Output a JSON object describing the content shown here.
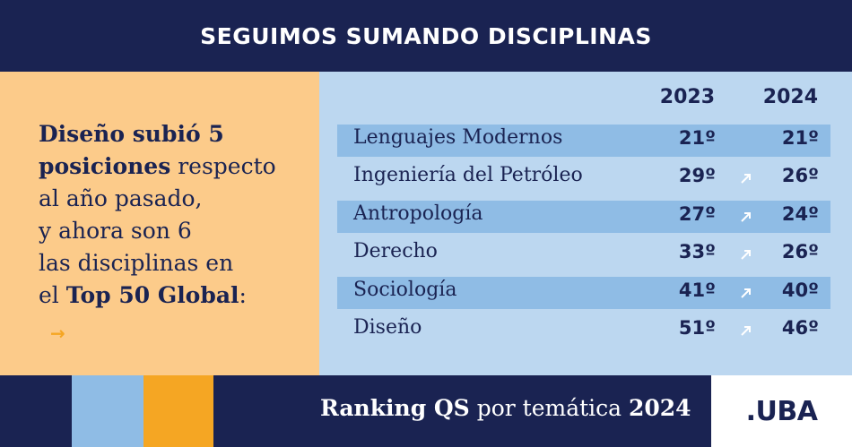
{
  "header": {
    "title": "SEGUIMOS SUMANDO DISCIPLINAS"
  },
  "intro": {
    "bold1": "Diseño subió 5",
    "bold2": "posiciones",
    "text1": " respecto",
    "line3": "al año pasado,",
    "line4": "y ahora son 6",
    "line5": "las disciplinas en",
    "line6_prefix": "el ",
    "line6_bold": "Top 50 Global",
    "line6_suffix": ":",
    "arrow": "→"
  },
  "table": {
    "years": [
      "2023",
      "2024"
    ],
    "rows": [
      {
        "name": "Lenguajes Modernos",
        "y2023": "21º",
        "y2024": "21º",
        "up": false
      },
      {
        "name": "Ingeniería del Petróleo",
        "y2023": "29º",
        "y2024": "26º",
        "up": true
      },
      {
        "name": "Antropología",
        "y2023": "27º",
        "y2024": "24º",
        "up": true
      },
      {
        "name": "Derecho",
        "y2023": "33º",
        "y2024": "26º",
        "up": true
      },
      {
        "name": "Sociología",
        "y2023": "41º",
        "y2024": "40º",
        "up": true
      },
      {
        "name": "Diseño",
        "y2023": "51º",
        "y2024": "46º",
        "up": true
      }
    ]
  },
  "footer": {
    "bold_start": "Ranking QS",
    "middle": " por temática ",
    "bold_end": "2024",
    "logo": ".UBA"
  },
  "colors": {
    "navy": "#1a2352",
    "peach": "#fccb8a",
    "light_blue": "#bcd7f0",
    "row_blue": "#8fbce5",
    "orange": "#f5a623"
  },
  "icons": {
    "up": "arrow-up-right-icon"
  }
}
